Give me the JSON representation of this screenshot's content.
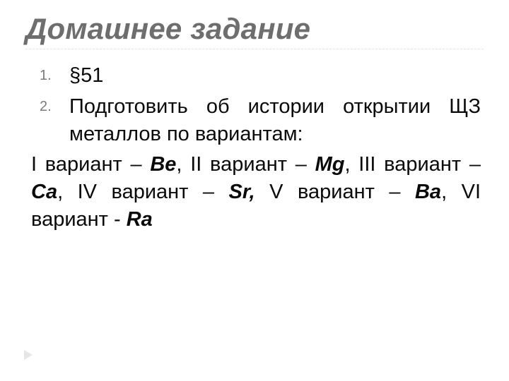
{
  "colors": {
    "title": "#6e6e6e",
    "body": "#0a0a0a",
    "listMarker": "#7a7a7a",
    "divider": "#e4e4e4",
    "arrow": "#e6e6e6",
    "background": "#ffffff"
  },
  "typography": {
    "titleSizePt": 42,
    "bodySizePt": 29,
    "markerSizePt": 20,
    "titleItalic": true,
    "titleBold": true
  },
  "title": "Домашнее задание",
  "list": {
    "item1": "§51",
    "item2": "Подготовить об истории открытии ЩЗ металлов по вариантам:"
  },
  "variants": {
    "lead": " I вариант – ",
    "el1": "Be",
    "sep1": ", II вариант – ",
    "el2": "Mg",
    "sep2": ", III вариант – ",
    "el3": "Ca",
    "sep3": ", IV вариант – ",
    "el4": "Sr,",
    "sep4": " V вариант – ",
    "el5": "Ba",
    "sep5": ", VI вариант - ",
    "el6": "Ra"
  }
}
